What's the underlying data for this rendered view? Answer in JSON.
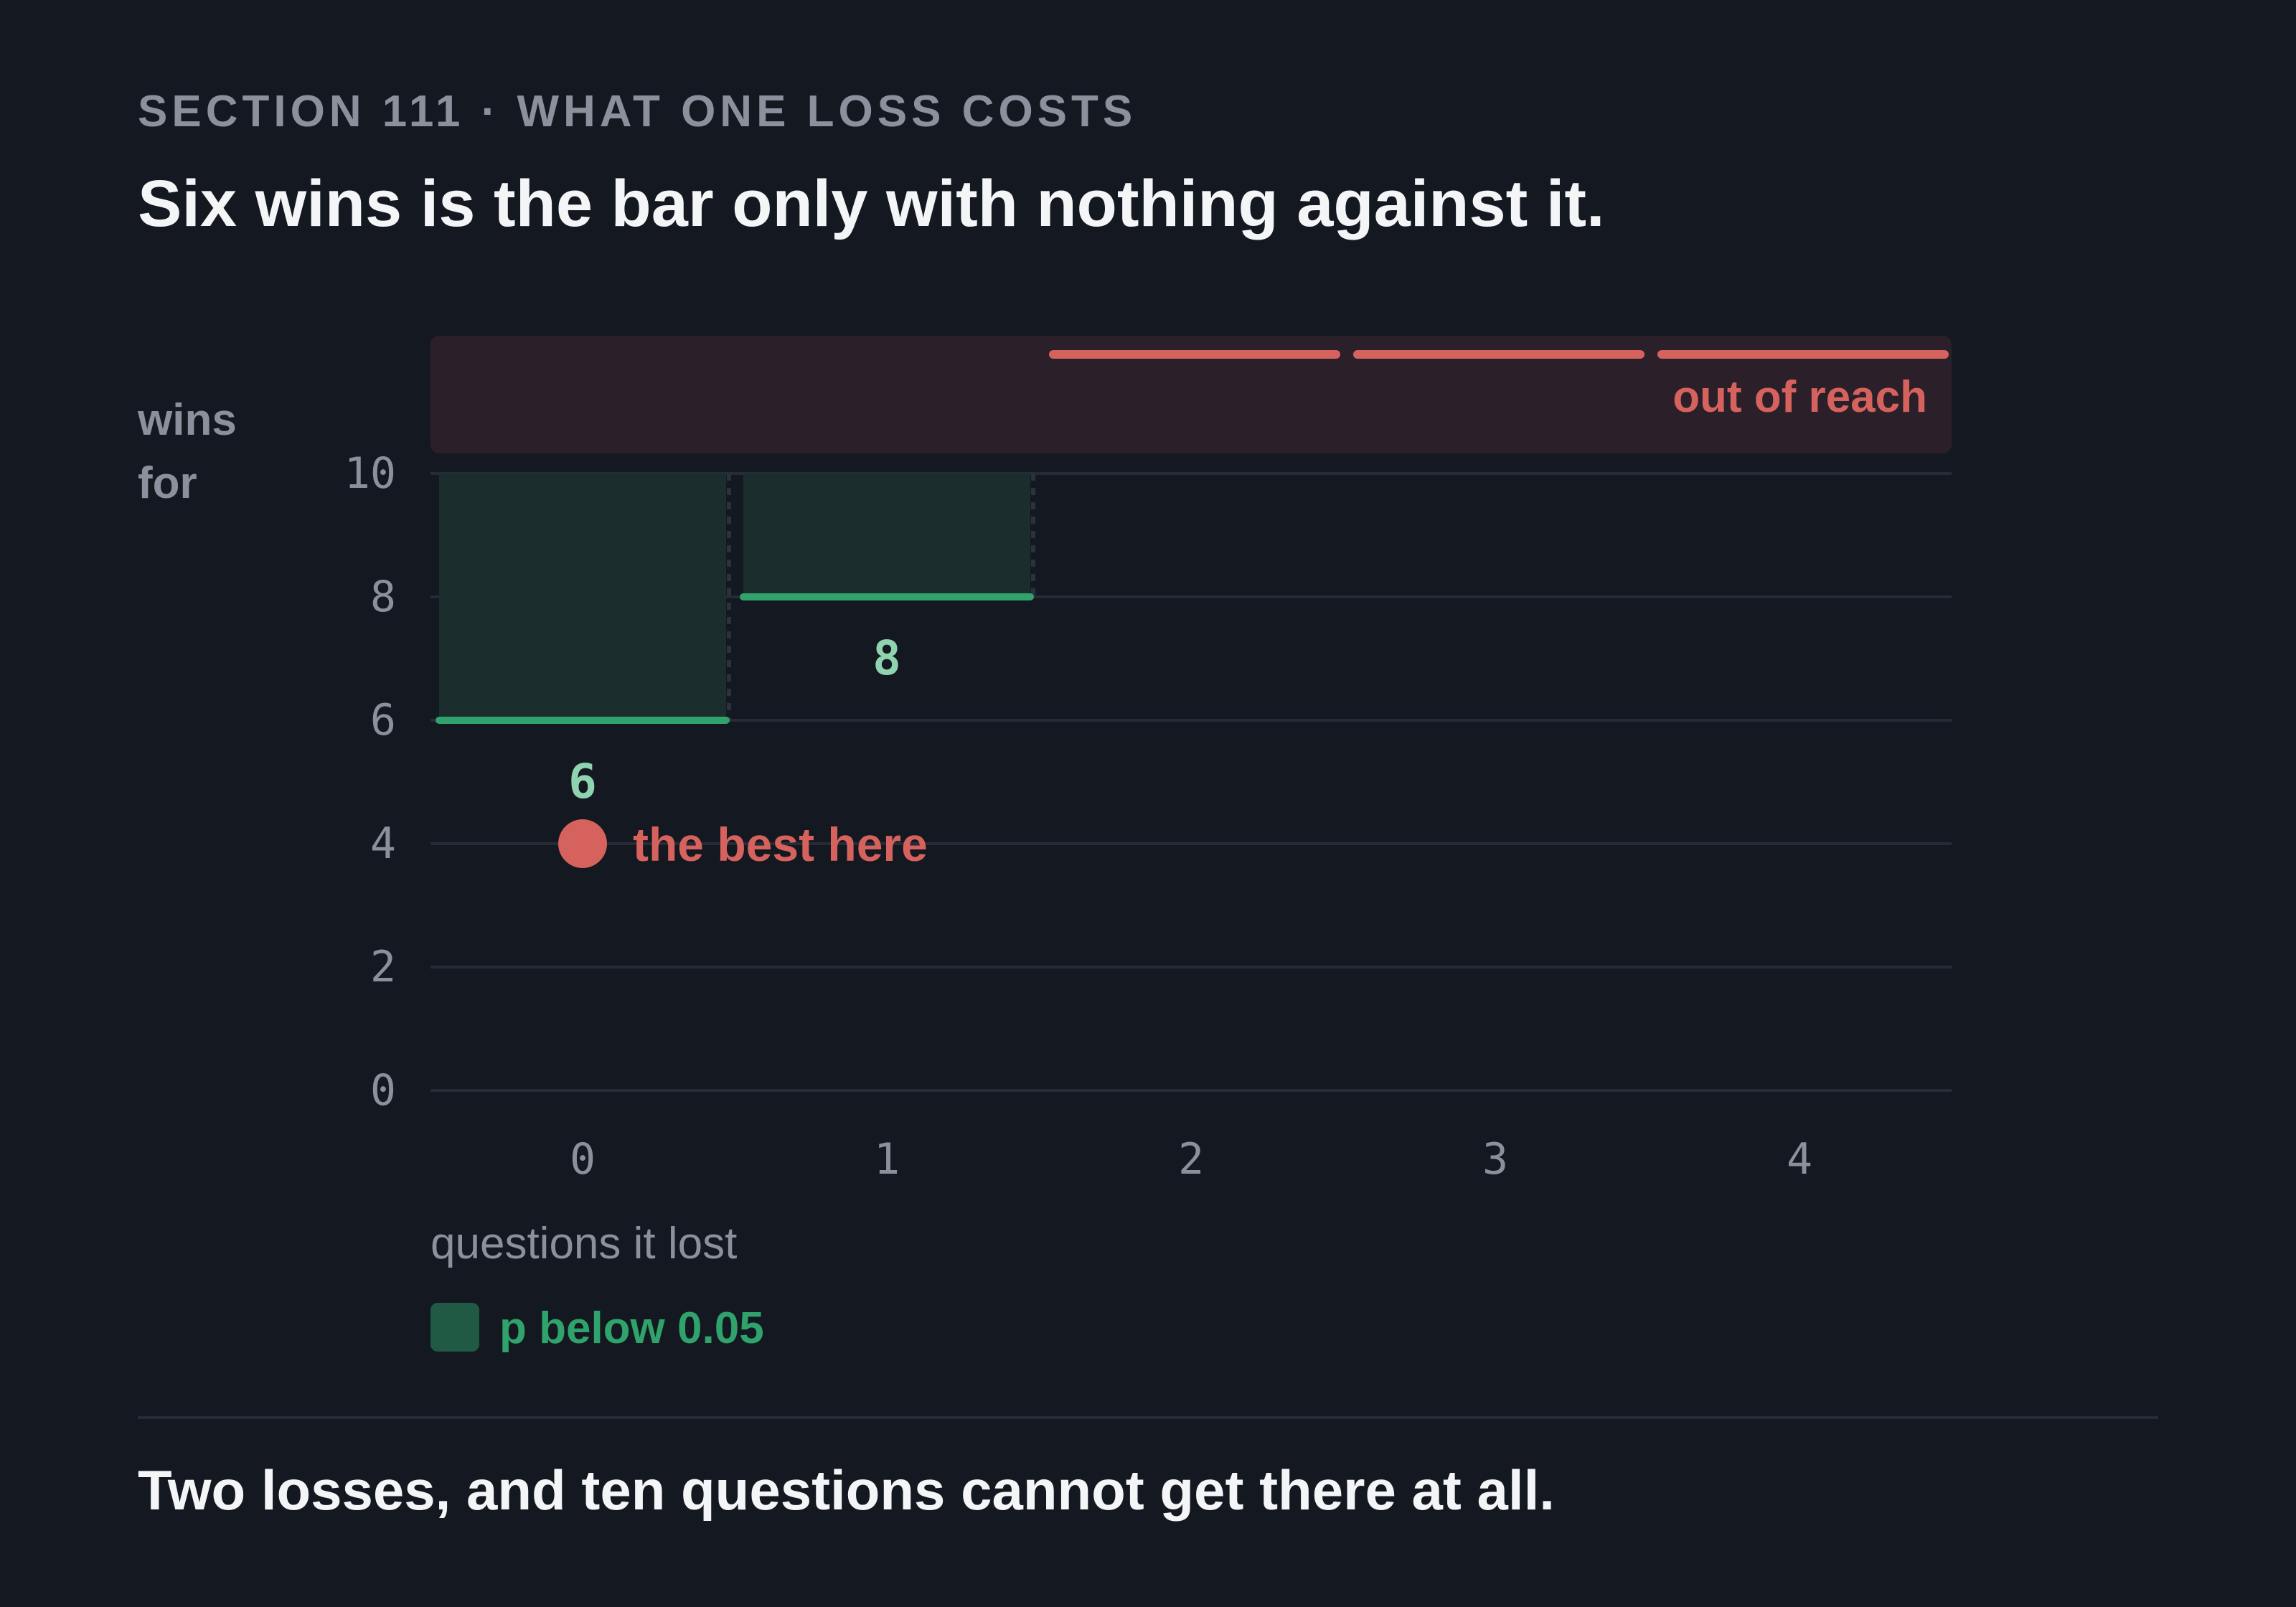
{
  "header": {
    "eyebrow": "SECTION 111 · WHAT ONE LOSS COSTS",
    "headline": "Six wins is the bar only with nothing against it."
  },
  "footer": {
    "caption": "Two losses, and ten questions cannot get there at all."
  },
  "colors": {
    "background": "#141820",
    "significant_fill": "#1b2d2c",
    "threshold_line": "#2fa36b",
    "out_of_reach_band": "#2b2029",
    "out_of_reach_line": "#d6625e",
    "best_point": "#d6625e"
  },
  "chart_data": {
    "type": "step",
    "xlabel": "questions it lost",
    "ylabel_lines": [
      "wins",
      "for"
    ],
    "x_ticks": [
      0,
      1,
      2,
      3,
      4
    ],
    "y_ticks": [
      0,
      2,
      4,
      6,
      8,
      10
    ],
    "xlim": [
      -0.5,
      4.5
    ],
    "ylim": [
      0,
      10
    ],
    "thresholds": [
      {
        "losses": 0,
        "wins_needed": 6,
        "label": "6"
      },
      {
        "losses": 1,
        "wins_needed": 8,
        "label": "8"
      },
      {
        "losses": 2,
        "wins_needed": null
      },
      {
        "losses": 3,
        "wins_needed": null
      },
      {
        "losses": 4,
        "wins_needed": null
      }
    ],
    "out_of_reach_label": "out of reach",
    "best_point": {
      "losses": 0,
      "wins": 4,
      "label": "the best here"
    },
    "legend": [
      {
        "label": "p below 0.05"
      }
    ],
    "grid": true
  }
}
